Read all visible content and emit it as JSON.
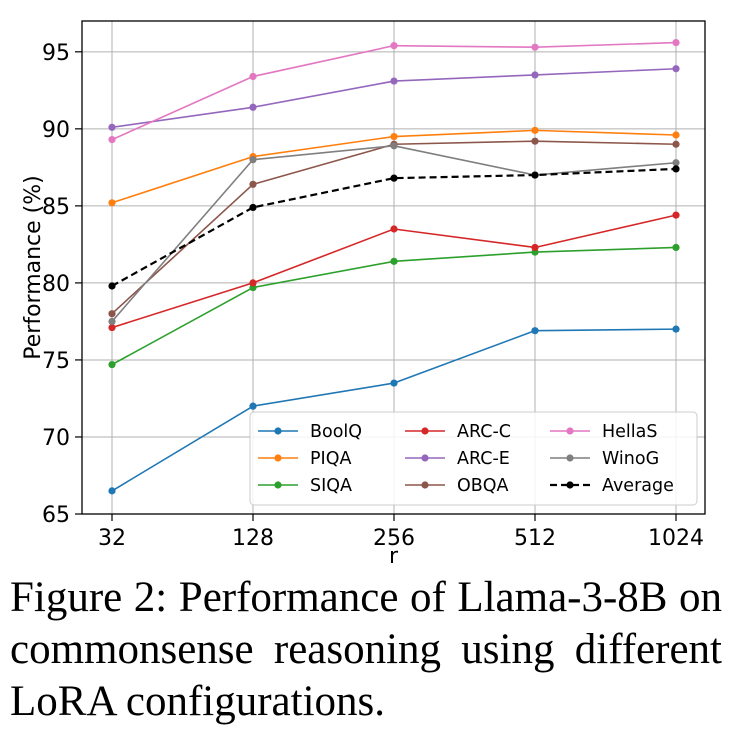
{
  "chart_data": {
    "type": "line",
    "title": "",
    "xlabel": "r",
    "ylabel": "Performance (%)",
    "categories": [
      "32",
      "128",
      "256",
      "512",
      "1024"
    ],
    "ylim": [
      65,
      97
    ],
    "yticks": [
      65,
      70,
      75,
      80,
      85,
      90,
      95
    ],
    "grid": true,
    "legend": {
      "placement": "lower-right",
      "columns": 3
    },
    "series": [
      {
        "name": "BoolQ",
        "color": "#1f77b4",
        "style": "solid",
        "values": [
          66.5,
          72.0,
          73.5,
          76.9,
          77.0
        ]
      },
      {
        "name": "PIQA",
        "color": "#ff7f0e",
        "style": "solid",
        "values": [
          85.2,
          88.2,
          89.5,
          89.9,
          89.6
        ]
      },
      {
        "name": "SIQA",
        "color": "#2ca02c",
        "style": "solid",
        "values": [
          74.7,
          79.7,
          81.4,
          82.0,
          82.3
        ]
      },
      {
        "name": "ARC-C",
        "color": "#d62728",
        "style": "solid",
        "values": [
          77.1,
          80.0,
          83.5,
          82.3,
          84.4
        ]
      },
      {
        "name": "ARC-E",
        "color": "#9467bd",
        "style": "solid",
        "values": [
          90.1,
          91.4,
          93.1,
          93.5,
          93.9
        ]
      },
      {
        "name": "OBQA",
        "color": "#8c564b",
        "style": "solid",
        "values": [
          78.0,
          86.4,
          89.0,
          89.2,
          89.0
        ]
      },
      {
        "name": "HellaS",
        "color": "#e377c2",
        "style": "solid",
        "values": [
          89.3,
          93.4,
          95.4,
          95.3,
          95.6
        ]
      },
      {
        "name": "WinoG",
        "color": "#7f7f7f",
        "style": "solid",
        "values": [
          77.5,
          88.0,
          88.9,
          87.0,
          87.8
        ]
      },
      {
        "name": "Average",
        "color": "#000000",
        "style": "dashed",
        "values": [
          79.8,
          84.9,
          86.8,
          87.0,
          87.4
        ]
      }
    ]
  },
  "caption": "Figure 2: Performance of Llama-3-8B on commonsense reasoning using dif­ferent LoRA configurations."
}
